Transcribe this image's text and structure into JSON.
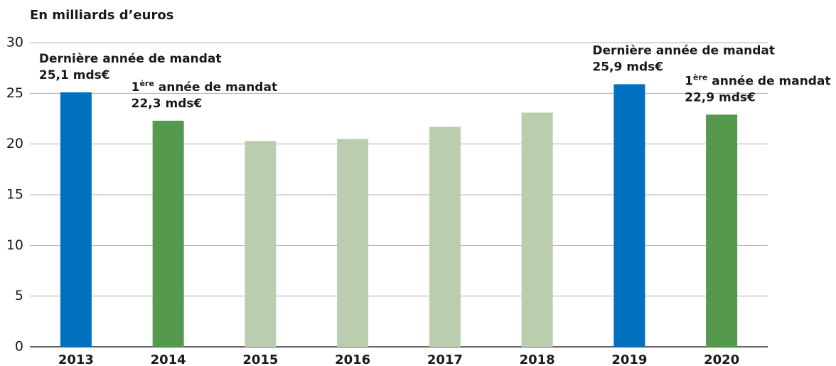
{
  "chart_data": {
    "type": "bar",
    "title": "En milliards d’euros",
    "categories": [
      "2013",
      "2014",
      "2015",
      "2016",
      "2017",
      "2018",
      "2019",
      "2020"
    ],
    "values": [
      25.1,
      22.3,
      20.3,
      20.5,
      21.7,
      23.1,
      25.9,
      22.9
    ],
    "colors": [
      "#0070bf",
      "#559a4c",
      "#bacdaf",
      "#bacdaf",
      "#bacdaf",
      "#bacdaf",
      "#0070bf",
      "#559a4c"
    ],
    "value_labels": [
      "25,1 mds€",
      "22,3 mds€",
      null,
      null,
      null,
      null,
      "25,9 mds€",
      "22,9 mds€"
    ],
    "notes": [
      {
        "text": "Dernière année de mandat"
      },
      {
        "num": "1",
        "sup": "ère",
        "text": " année de mandat"
      },
      null,
      null,
      null,
      null,
      {
        "text": "Dernière année de mandat"
      },
      {
        "num": "1",
        "sup": "ère",
        "text": " année de mandat"
      }
    ],
    "ylim": [
      0,
      30
    ],
    "yticks": [
      0,
      5,
      10,
      15,
      20,
      25,
      30
    ],
    "grid": true
  }
}
